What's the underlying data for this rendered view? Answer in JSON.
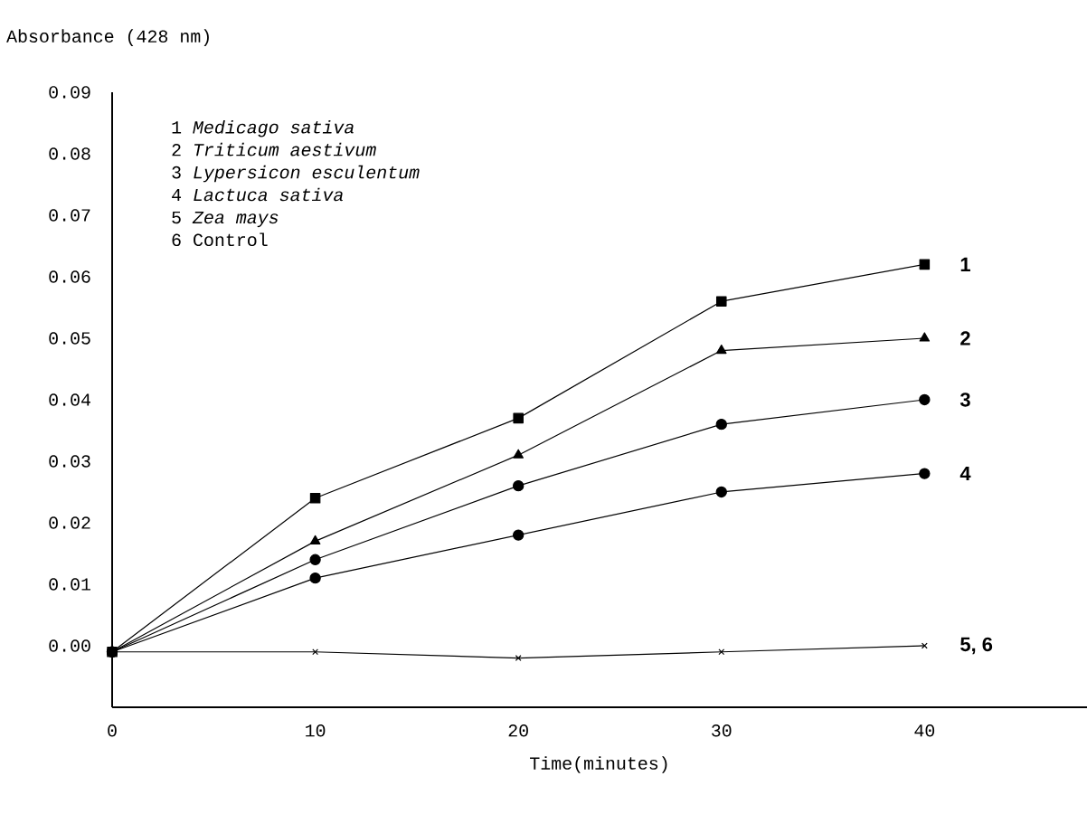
{
  "chart_data": {
    "type": "line",
    "ylabel": "Absorbance (428 nm)",
    "xlabel": "Time(minutes)",
    "x": [
      0,
      10,
      20,
      30,
      40
    ],
    "xlim": [
      0,
      48
    ],
    "xticks": [
      0,
      10,
      20,
      30,
      40
    ],
    "ylim": [
      -0.01,
      0.09
    ],
    "yticks": [
      {
        "value": 0,
        "label": "0.00"
      },
      {
        "value": 0.01,
        "label": "0.01"
      },
      {
        "value": 0.02,
        "label": "0.02"
      },
      {
        "value": 0.03,
        "label": "0.03"
      },
      {
        "value": 0.04,
        "label": "0.04"
      },
      {
        "value": 0.05,
        "label": "0.05"
      },
      {
        "value": 0.06,
        "label": "0.06"
      },
      {
        "value": 0.07,
        "label": "0.07"
      },
      {
        "value": 0.08,
        "label": "0.08"
      },
      {
        "value": 0.09,
        "label": "0.09"
      }
    ],
    "line_style": "solid",
    "series": [
      {
        "name": "1",
        "color": "#000000",
        "marker": "square",
        "values": [
          -0.001,
          0.024,
          0.037,
          0.056,
          0.062
        ]
      },
      {
        "name": "2",
        "color": "#000000",
        "marker": "triangle",
        "values": [
          -0.001,
          0.017,
          0.031,
          0.048,
          0.05
        ]
      },
      {
        "name": "3",
        "color": "#000000",
        "marker": "circle",
        "values": [
          -0.001,
          0.014,
          0.026,
          0.036,
          0.04
        ]
      },
      {
        "name": "4",
        "color": "#000000",
        "marker": "circle",
        "values": [
          -0.001,
          0.011,
          0.018,
          0.025,
          0.028
        ]
      },
      {
        "name": "5, 6",
        "color": "#000000",
        "marker": "cross",
        "values": [
          -0.001,
          -0.001,
          -0.002,
          -0.001,
          0.0
        ]
      }
    ],
    "annotations": [
      "1 *Medicago sativa*",
      "2 *Triticum aestivum*",
      "3 *Lypersicon esculentum*",
      "4 *Lactuca sativa*",
      "5 *Zea mays*",
      "6 Control"
    ]
  }
}
